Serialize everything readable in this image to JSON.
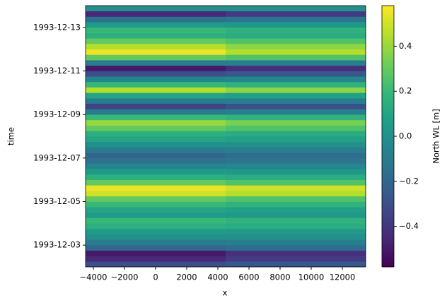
{
  "chart_data": {
    "type": "heatmap",
    "colormap": "viridis",
    "xlabel": "x",
    "ylabel": "time",
    "colorbar_label": "North WL [m]",
    "xlim": [
      -4500,
      13500
    ],
    "x_edges": [
      -4500,
      4500,
      13500
    ],
    "xticks": [
      {
        "value": -4000,
        "label": "−4000"
      },
      {
        "value": -2000,
        "label": "−2000"
      },
      0,
      2000,
      4000,
      6000,
      8000,
      10000,
      12000
    ],
    "ylim": [
      "1993-12-02",
      "1993-12-14"
    ],
    "yticks": [
      "1993-12-03",
      "1993-12-05",
      "1993-12-07",
      "1993-12-09",
      "1993-12-11",
      "1993-12-13"
    ],
    "clim": [
      -0.58,
      0.58
    ],
    "cticks": [
      {
        "value": -0.4,
        "label": "−0.4"
      },
      {
        "value": -0.2,
        "label": "−0.2"
      },
      {
        "value": 0,
        "label": "0.0"
      },
      0.2,
      0.4
    ],
    "z": [
      [
        -0.3,
        -0.26
      ],
      [
        -0.45,
        -0.38
      ],
      [
        -0.5,
        -0.42
      ],
      [
        -0.2,
        -0.17
      ],
      [
        -0.1,
        -0.08
      ],
      [
        0.0,
        0.0
      ],
      [
        0.05,
        0.04
      ],
      [
        0.15,
        0.13
      ],
      [
        0.2,
        0.17
      ],
      [
        0.05,
        0.04
      ],
      [
        0.1,
        0.08
      ],
      [
        0.2,
        0.17
      ],
      [
        0.3,
        0.26
      ],
      [
        0.5,
        0.45
      ],
      [
        0.55,
        0.5
      ],
      [
        0.3,
        0.26
      ],
      [
        0.15,
        0.13
      ],
      [
        0.05,
        0.04
      ],
      [
        -0.05,
        -0.04
      ],
      [
        -0.15,
        -0.13
      ],
      [
        -0.2,
        -0.17
      ],
      [
        -0.1,
        -0.08
      ],
      [
        0.0,
        0.0
      ],
      [
        0.1,
        0.08
      ],
      [
        0.15,
        0.13
      ],
      [
        0.3,
        0.26
      ],
      [
        0.4,
        0.34
      ],
      [
        0.2,
        0.17
      ],
      [
        -0.1,
        -0.08
      ],
      [
        -0.35,
        -0.3
      ],
      [
        -0.1,
        -0.08
      ],
      [
        0.1,
        0.08
      ],
      [
        0.45,
        0.38
      ],
      [
        0.2,
        0.17
      ],
      [
        -0.05,
        -0.04
      ],
      [
        -0.3,
        -0.26
      ],
      [
        -0.5,
        -0.43
      ],
      [
        -0.1,
        -0.08
      ],
      [
        0.3,
        0.26
      ],
      [
        0.55,
        0.45
      ],
      [
        0.45,
        0.38
      ],
      [
        0.3,
        0.26
      ],
      [
        0.15,
        0.13
      ],
      [
        0.2,
        0.17
      ],
      [
        0.05,
        0.04
      ],
      [
        -0.15,
        -0.13
      ],
      [
        -0.45,
        -0.38
      ],
      [
        0.0,
        0.0
      ]
    ]
  }
}
